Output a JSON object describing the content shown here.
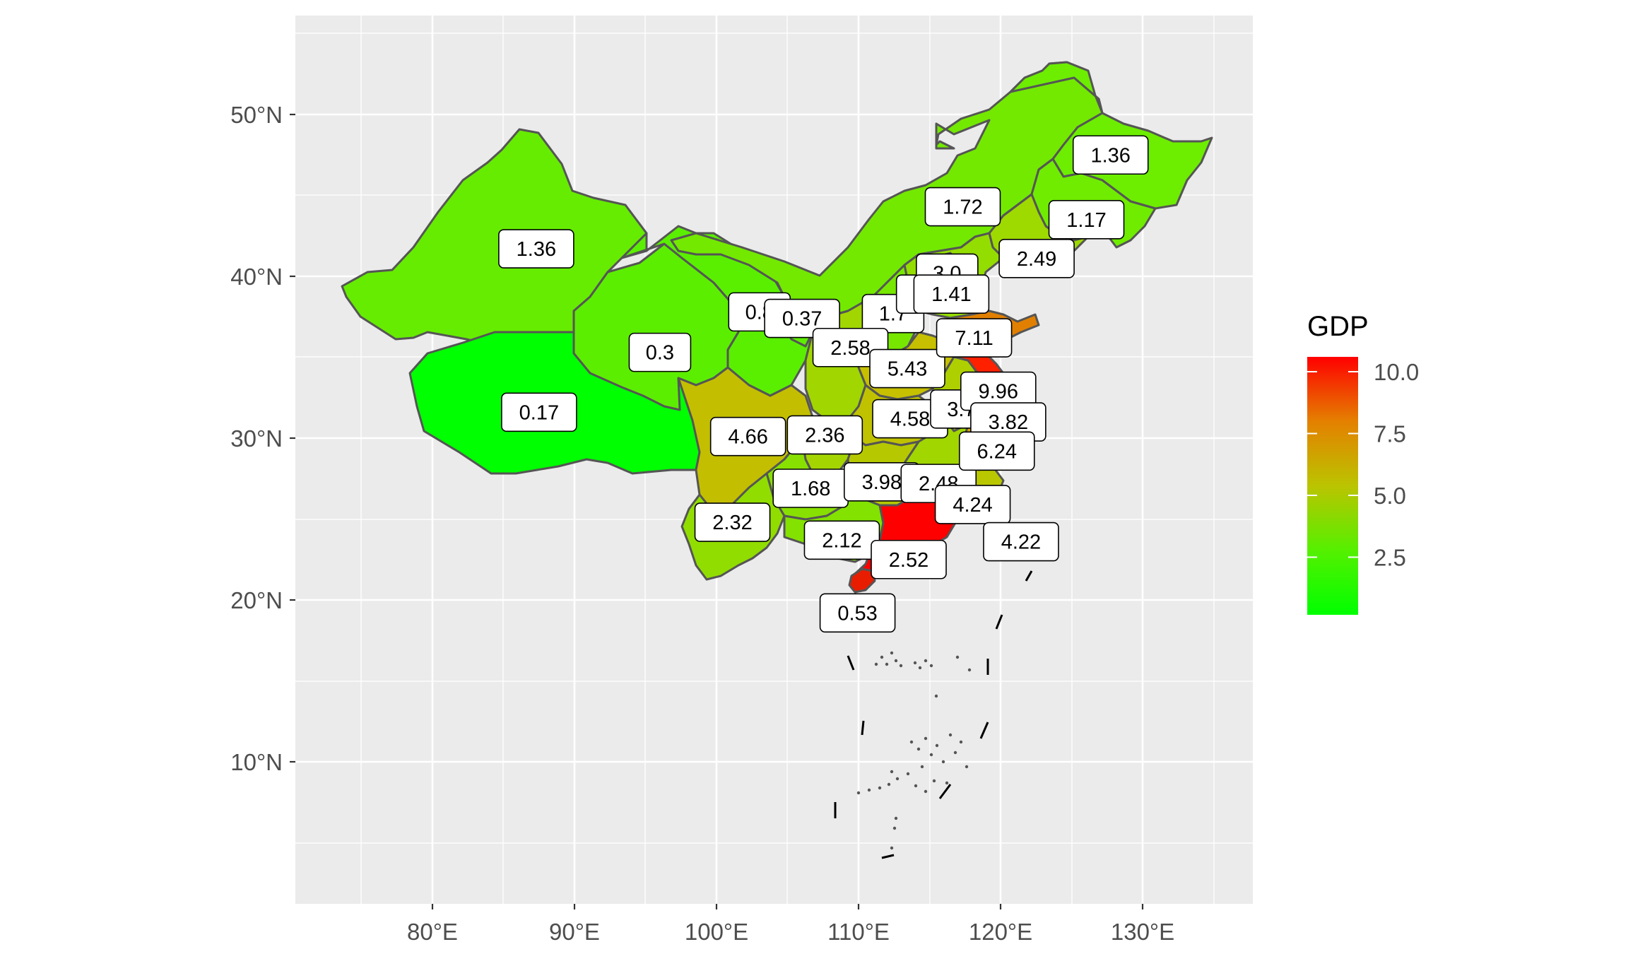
{
  "axes": {
    "x_ticks": [
      "80°E",
      "90°E",
      "100°E",
      "110°E",
      "120°E",
      "130°E"
    ],
    "y_ticks": [
      "50°N",
      "40°N",
      "30°N",
      "20°N",
      "10°N"
    ],
    "x_tick_values": [
      80,
      90,
      100,
      110,
      120,
      130
    ],
    "y_tick_values": [
      50,
      40,
      30,
      20,
      10
    ],
    "xlim": [
      70.3,
      137.8
    ],
    "ylim": [
      1.0,
      56.2
    ]
  },
  "legend": {
    "title": "GDP",
    "ticks": [
      "10.0",
      "7.5",
      "5.0",
      "2.5"
    ],
    "tick_values": [
      10.0,
      7.5,
      5.0,
      2.5
    ],
    "range": [
      0.17,
      10.6
    ],
    "placement": "right",
    "colors": [
      "#00ff00",
      "#ff0000"
    ]
  },
  "chart_data": {
    "type": "choropleth",
    "fill_variable": "GDP",
    "grid": true,
    "labels": [
      {
        "value": "1.36",
        "lon": 87.3,
        "lat": 41.7
      },
      {
        "value": "0.17",
        "lon": 87.5,
        "lat": 31.6
      },
      {
        "value": "0.3",
        "lon": 96.0,
        "lat": 35.3
      },
      {
        "value": "0.8",
        "lon": 103.0,
        "lat": 37.8
      },
      {
        "value": "0.37",
        "lon": 106.0,
        "lat": 37.4
      },
      {
        "value": "1.7",
        "lon": 112.4,
        "lat": 37.7
      },
      {
        "value": "2.58",
        "lon": 109.4,
        "lat": 35.6
      },
      {
        "value": "4.66",
        "lon": 102.2,
        "lat": 30.1
      },
      {
        "value": "2.36",
        "lon": 107.6,
        "lat": 30.2
      },
      {
        "value": "1.68",
        "lon": 106.6,
        "lat": 26.9
      },
      {
        "value": "2.32",
        "lon": 101.1,
        "lat": 24.8
      },
      {
        "value": "2.12",
        "lon": 108.8,
        "lat": 23.7
      },
      {
        "value": "0.53",
        "lon": 109.9,
        "lat": 19.2
      },
      {
        "value": "2.52",
        "lon": 113.5,
        "lat": 22.5
      },
      {
        "value": "3.98",
        "lon": 111.6,
        "lat": 27.3
      },
      {
        "value": "2.48",
        "lon": 115.6,
        "lat": 27.2
      },
      {
        "value": "4.24",
        "lon": 118.0,
        "lat": 25.9
      },
      {
        "value": "4.22",
        "lon": 121.4,
        "lat": 23.6
      },
      {
        "value": "4.58",
        "lon": 113.6,
        "lat": 31.2
      },
      {
        "value": "5.43",
        "lon": 113.4,
        "lat": 34.3
      },
      {
        "value": "3.7",
        "lon": 117.2,
        "lat": 31.8
      },
      {
        "value": "9.96",
        "lon": 119.8,
        "lat": 32.9
      },
      {
        "value": "3.82",
        "lon": 120.5,
        "lat": 31.0
      },
      {
        "value": "6.24",
        "lon": 119.7,
        "lat": 29.2
      },
      {
        "value": "7.11",
        "lon": 118.1,
        "lat": 36.2
      },
      {
        "value": "3.4",
        "lon": 114.8,
        "lat": 38.9
      },
      {
        "value": "3.0",
        "lon": 116.2,
        "lat": 40.2
      },
      {
        "value": "1.41",
        "lon": 116.5,
        "lat": 38.9
      },
      {
        "value": "2.49",
        "lon": 122.5,
        "lat": 41.1
      },
      {
        "value": "1.17",
        "lon": 126.0,
        "lat": 43.5
      },
      {
        "value": "1.72",
        "lon": 117.3,
        "lat": 44.3
      },
      {
        "value": "1.36",
        "lon": 127.7,
        "lat": 47.5
      }
    ]
  }
}
